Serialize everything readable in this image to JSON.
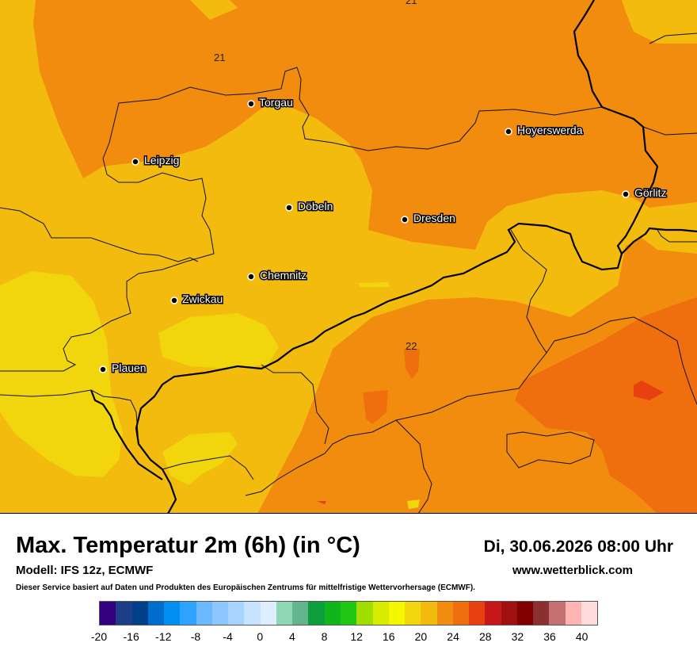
{
  "map": {
    "colors": {
      "c20": "#f28c0f",
      "c18": "#f3bb0e",
      "c16": "#f1d60e",
      "c22": "#ef6f0f",
      "c24": "#e8410f"
    },
    "contour_labels": [
      {
        "id": "top",
        "text": "21"
      },
      {
        "id": "nw",
        "text": "21"
      },
      {
        "id": "se",
        "text": "22"
      }
    ],
    "cities": [
      {
        "name": "Torgau"
      },
      {
        "name": "Hoyerswerda"
      },
      {
        "name": "Leipzig"
      },
      {
        "name": "Görlitz"
      },
      {
        "name": "Döbeln"
      },
      {
        "name": "Dresden"
      },
      {
        "name": "Chemnitz"
      },
      {
        "name": "Zwickau"
      },
      {
        "name": "Plauen"
      }
    ]
  },
  "header": {
    "title": "Max. Temperatur 2m (6h) (in °C)",
    "datetime": "Di, 30.06.2026 08:00 Uhr",
    "model": "Modell: IFS 12z, ECMWF",
    "website": "www.wetterblick.com",
    "disclaimer": "Dieser Service basiert auf Daten und Produkten des Europäischen Zentrums für mittelfristige Wettervorhersage (ECMWF)."
  },
  "legend": {
    "colors": [
      "#330080",
      "#1c3e86",
      "#003f8a",
      "#006ccc",
      "#008ff0",
      "#30a2ff",
      "#6cb9ff",
      "#8ec6ff",
      "#a8d5ff",
      "#c8e3ff",
      "#ddeeff",
      "#8fd6b4",
      "#62b58d",
      "#0c9e3c",
      "#10b51c",
      "#20c612",
      "#a0dd00",
      "#d6ec00",
      "#f5f700",
      "#f1d60e",
      "#f3bb0e",
      "#f28c0f",
      "#ef6f0f",
      "#e8410f",
      "#c61818",
      "#a01010",
      "#800000",
      "#8b3030",
      "#c57070",
      "#ffb4b4",
      "#ffdcdc"
    ],
    "ticks": [
      "-20",
      "-16",
      "-12",
      "-8",
      "-4",
      "0",
      "4",
      "8",
      "12",
      "16",
      "20",
      "24",
      "28",
      "32",
      "36",
      "40"
    ]
  }
}
